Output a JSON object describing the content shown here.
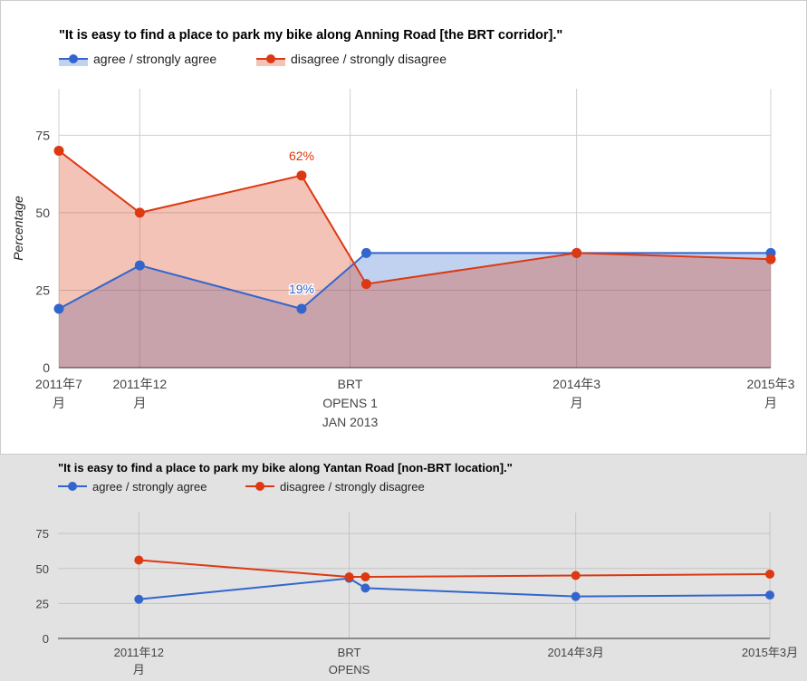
{
  "chart_data": [
    {
      "type": "area",
      "title": "\"It is easy to find a place to park my bike along Anning Road [the BRT corridor].\"",
      "ylabel": "Percentage",
      "xlabel": "",
      "ylim": [
        0,
        90
      ],
      "yticks": [
        "0",
        "25",
        "50",
        "75"
      ],
      "grid": true,
      "legend_position": "top",
      "x_categories": [
        [
          "2011年7",
          "月"
        ],
        [
          "2011年12",
          "月"
        ],
        [
          "BRT",
          "OPENS 1",
          "JAN 2013"
        ],
        [
          "2014年3",
          "月"
        ],
        [
          "2015年3",
          "月"
        ]
      ],
      "series": [
        {
          "name": "agree / strongly agree",
          "color": "#3366cc",
          "points": [
            {
              "x": "2011-07",
              "y": 19
            },
            {
              "x": "2011-12",
              "y": 33
            },
            {
              "x": "2012-10",
              "y": 19,
              "label": "19%"
            },
            {
              "x": "2013-02",
              "y": 37
            },
            {
              "x": "2014-03",
              "y": 37
            },
            {
              "x": "2015-03",
              "y": 37
            }
          ]
        },
        {
          "name": "disagree / strongly disagree",
          "color": "#dc3912",
          "points": [
            {
              "x": "2011-07",
              "y": 70
            },
            {
              "x": "2011-12",
              "y": 50
            },
            {
              "x": "2012-10",
              "y": 62,
              "label": "62%"
            },
            {
              "x": "2013-02",
              "y": 27
            },
            {
              "x": "2014-03",
              "y": 37
            },
            {
              "x": "2015-03",
              "y": 35
            }
          ]
        }
      ]
    },
    {
      "type": "line",
      "title": "\"It is easy to find a place to park my bike along Yantan Road [non-BRT location].\"",
      "ylabel": "",
      "xlabel": "",
      "ylim": [
        0,
        90
      ],
      "yticks": [
        "0",
        "25",
        "50",
        "75"
      ],
      "grid": true,
      "legend_position": "top",
      "x_categories": [
        [
          "2011年12",
          "月"
        ],
        [
          "BRT",
          "OPENS"
        ],
        [
          "2014年3月"
        ],
        [
          "2015年3月"
        ]
      ],
      "series": [
        {
          "name": "agree / strongly agree",
          "color": "#3366cc",
          "points": [
            {
              "x": "2011-12",
              "y": 28
            },
            {
              "x": "2013-01",
              "y": 43
            },
            {
              "x": "2013-02",
              "y": 36
            },
            {
              "x": "2014-03",
              "y": 30
            },
            {
              "x": "2015-03",
              "y": 31
            }
          ]
        },
        {
          "name": "disagree / strongly disagree",
          "color": "#dc3912",
          "points": [
            {
              "x": "2011-12",
              "y": 56
            },
            {
              "x": "2013-01",
              "y": 44
            },
            {
              "x": "2013-02",
              "y": 44
            },
            {
              "x": "2014-03",
              "y": 45
            },
            {
              "x": "2015-03",
              "y": 46
            }
          ]
        }
      ]
    }
  ]
}
